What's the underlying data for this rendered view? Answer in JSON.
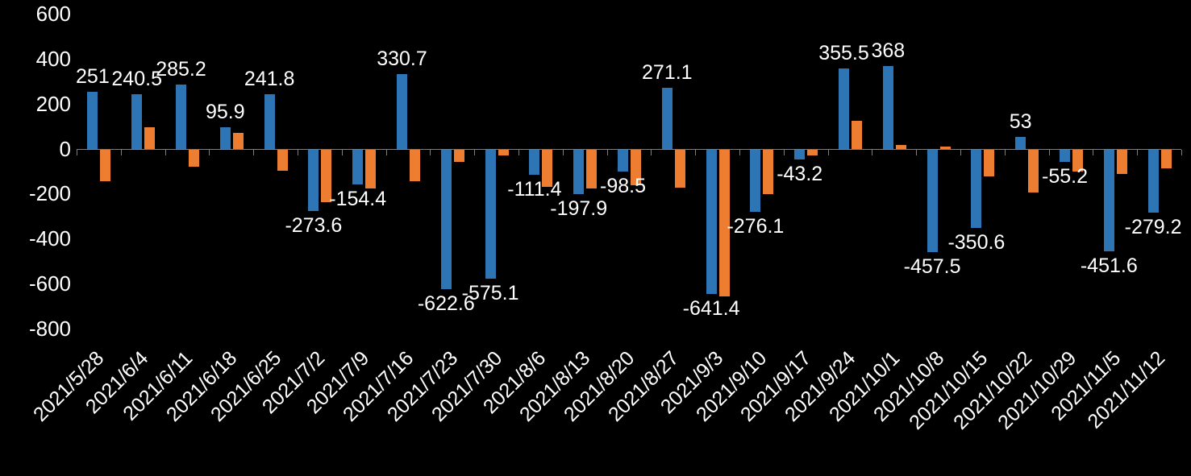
{
  "chart_data": {
    "type": "bar",
    "title": "",
    "xlabel": "",
    "ylabel": "",
    "legend": "none",
    "grid": false,
    "ylim": [
      -800,
      600
    ],
    "categories": [
      "2021/5/28",
      "2021/6/4",
      "2021/6/11",
      "2021/6/18",
      "2021/6/25",
      "2021/7/2",
      "2021/7/9",
      "2021/7/16",
      "2021/7/23",
      "2021/7/30",
      "2021/8/6",
      "2021/8/13",
      "2021/8/20",
      "2021/8/27",
      "2021/9/3",
      "2021/9/10",
      "2021/9/17",
      "2021/9/24",
      "2021/10/1",
      "2021/10/8",
      "2021/10/15",
      "2021/10/22",
      "2021/10/29",
      "2021/11/5",
      "2021/11/12"
    ],
    "series": [
      {
        "name": "blue-series",
        "color": "#2E75B6",
        "values": [
          251,
          240.5,
          285.2,
          95.9,
          241.8,
          -273.6,
          -154.4,
          330.7,
          -622.6,
          -575.1,
          -111.4,
          -197.9,
          -98.5,
          271.1,
          -641.4,
          -276.1,
          -43.2,
          355.5,
          368,
          -457.5,
          -350.6,
          53,
          -55.2,
          -451.6,
          -279.2
        ],
        "data_labels": [
          "251",
          "240.5",
          "285.2",
          "95.9",
          "241.8",
          "-273.6",
          "-154.4",
          "330.7",
          "-622.6",
          "-575.1",
          "-111.4",
          "-197.9",
          "-98.5",
          "271.1",
          "-641.4",
          "-276.1",
          "-43.2",
          "355.5",
          "368",
          "-457.5",
          "-350.6",
          "53",
          "-55.2",
          "-451.6",
          "-279.2"
        ]
      },
      {
        "name": "orange-series",
        "color": "#ED7D31",
        "values": [
          -140,
          95,
          -75,
          70,
          -95,
          -235,
          -175,
          -140,
          -55,
          -25,
          -165,
          -175,
          -160,
          -170,
          -655,
          -200,
          -25,
          125,
          15,
          10,
          -120,
          -190,
          -100,
          -110,
          -85
        ],
        "data_labels": []
      }
    ],
    "y_axis": {
      "tick_labels": [
        "600",
        "400",
        "200",
        "0",
        "-200",
        "-400",
        "-600",
        "-800"
      ],
      "tick_values": [
        600,
        400,
        200,
        0,
        -200,
        -400,
        -600,
        -800
      ]
    },
    "colors": {
      "background": "#000000",
      "text": "#FFFFFF",
      "axis": "#7F7F7F"
    }
  }
}
